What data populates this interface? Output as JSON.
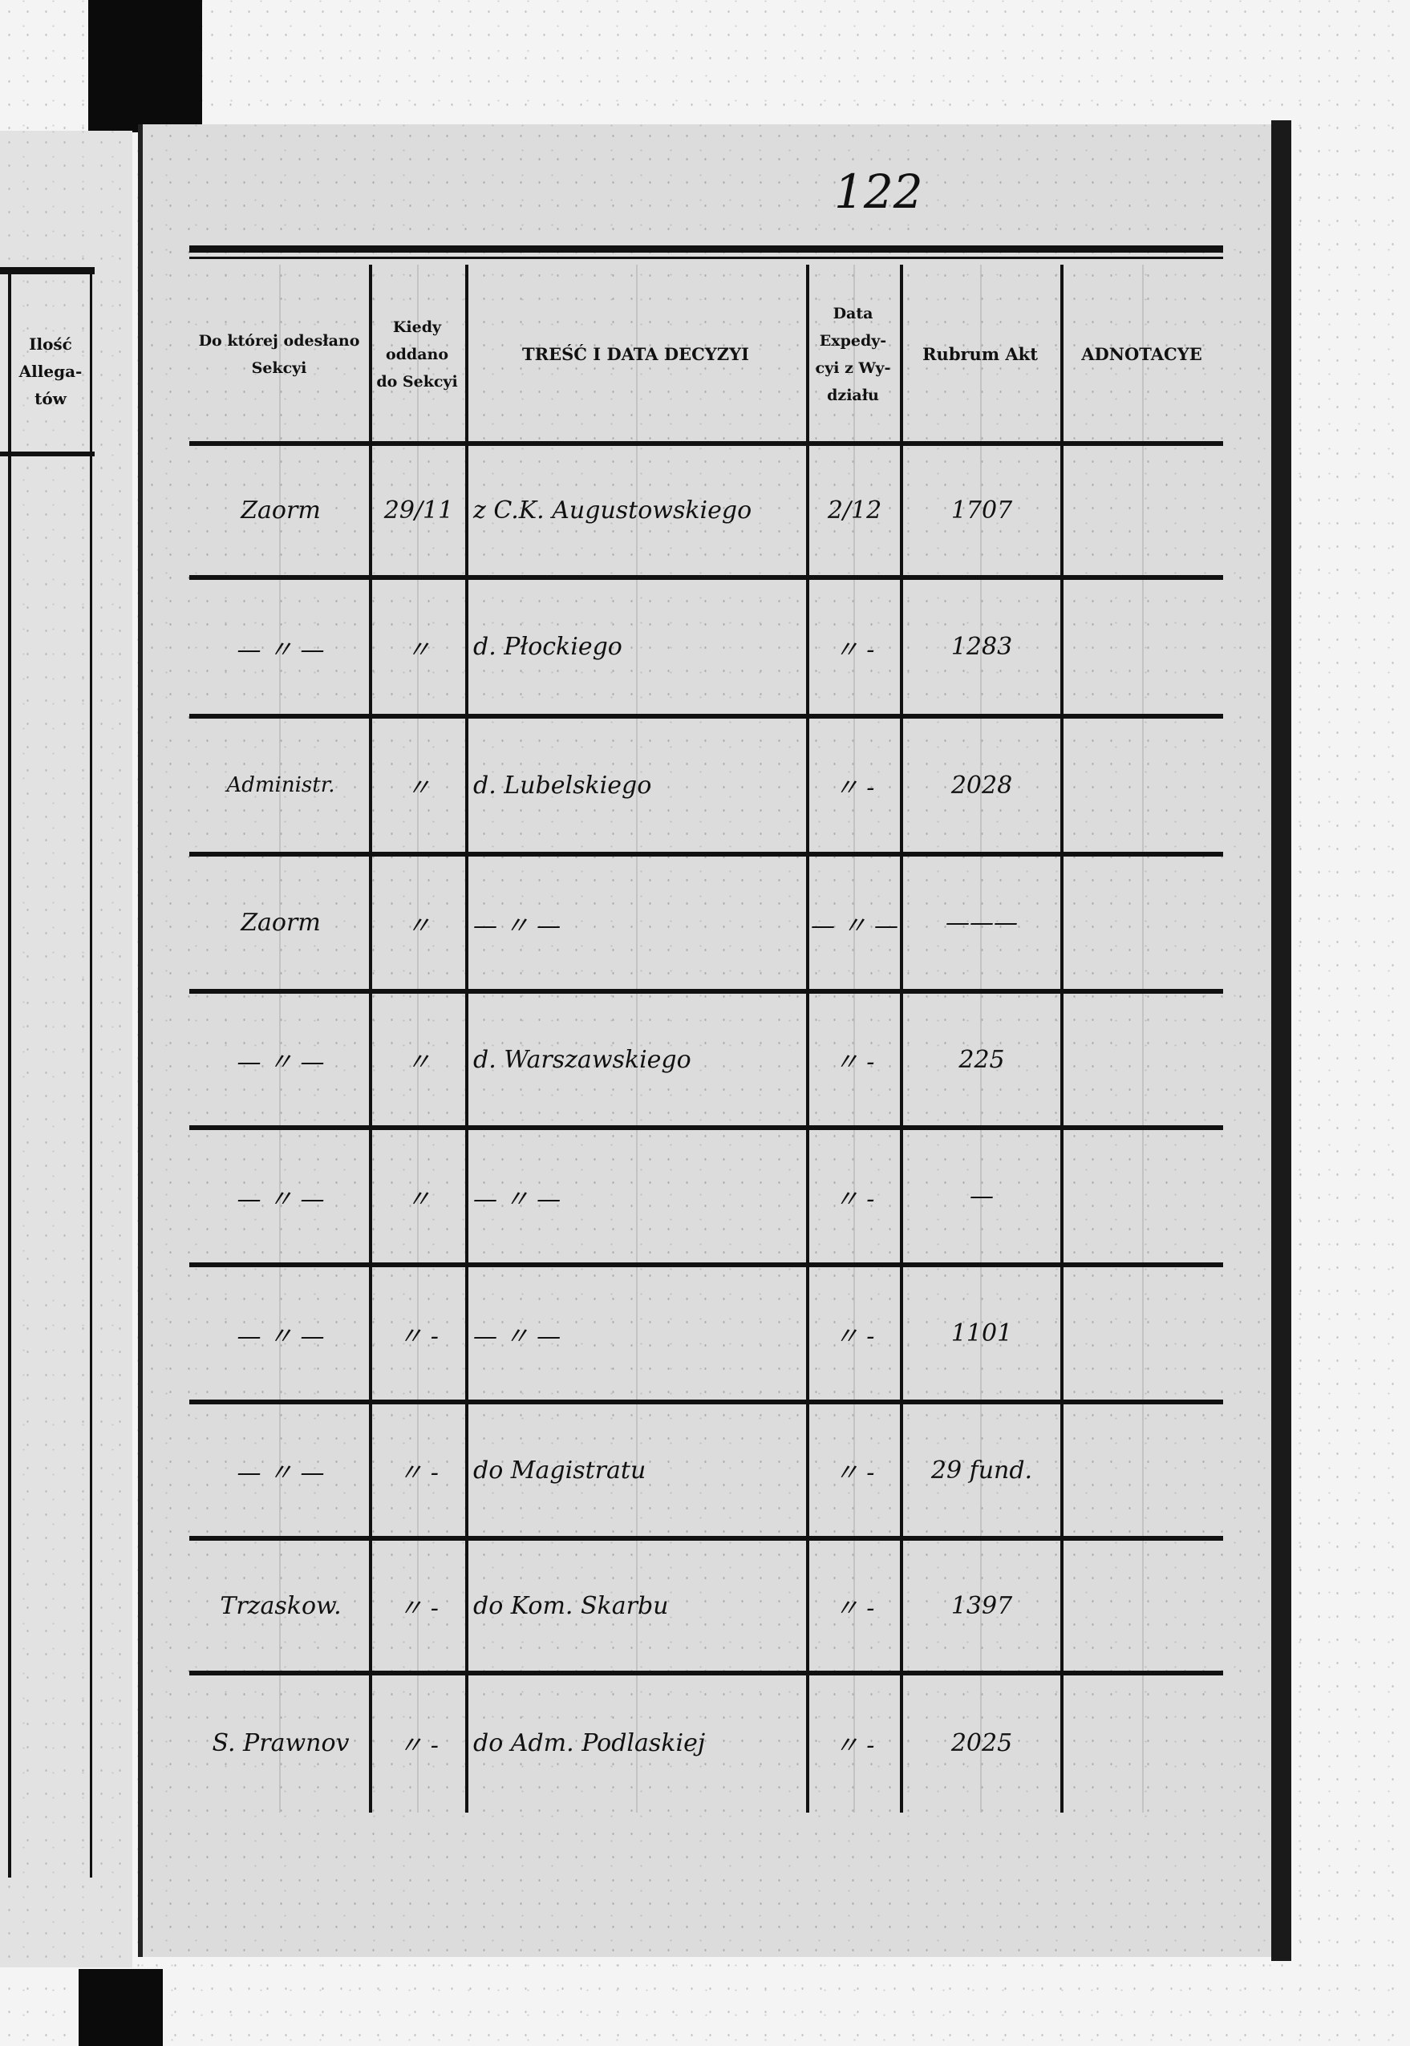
{
  "page_number": "122",
  "left_page": {
    "header": "Ilość Allega-tów"
  },
  "headers": [
    "Do której odesłano Sekcyi",
    "Kiedy oddano do Sekcyi",
    "TREŚĆ I DATA DECYZYI",
    "Data Expedy-cyi z Wy-działu",
    "Rubrum Akt",
    "ADNOTACYE"
  ],
  "rows": [
    [
      "Zaorm",
      "29/11",
      "z C.K. Augustowskiego",
      "2/12",
      "1707",
      ""
    ],
    [
      "— 〃 —",
      "〃",
      "d. Płockiego",
      "〃 -",
      "1283",
      ""
    ],
    [
      "Administr.",
      "〃",
      "d. Lubelskiego",
      "〃 -",
      "2028",
      ""
    ],
    [
      "Zaorm",
      "〃",
      "— 〃 —",
      "— 〃 —",
      "———",
      ""
    ],
    [
      "— 〃 —",
      "〃",
      "d. Warszawskiego",
      "〃 -",
      "225",
      ""
    ],
    [
      "— 〃 —",
      "〃",
      "— 〃 —",
      "〃 -",
      "—",
      ""
    ],
    [
      "— 〃 —",
      "〃 -",
      "— 〃 —",
      "〃 -",
      "1101",
      ""
    ],
    [
      "— 〃 —",
      "〃 -",
      "do Magistratu",
      "〃 -",
      "29 fund.",
      ""
    ],
    [
      "Trzaskow.",
      "〃 -",
      "do Kom. Skarbu",
      "〃 -",
      "1397",
      ""
    ],
    [
      "S. Prawnov",
      "〃 -",
      "do Adm. Podlaskiej",
      "〃 -",
      "2025",
      ""
    ]
  ]
}
